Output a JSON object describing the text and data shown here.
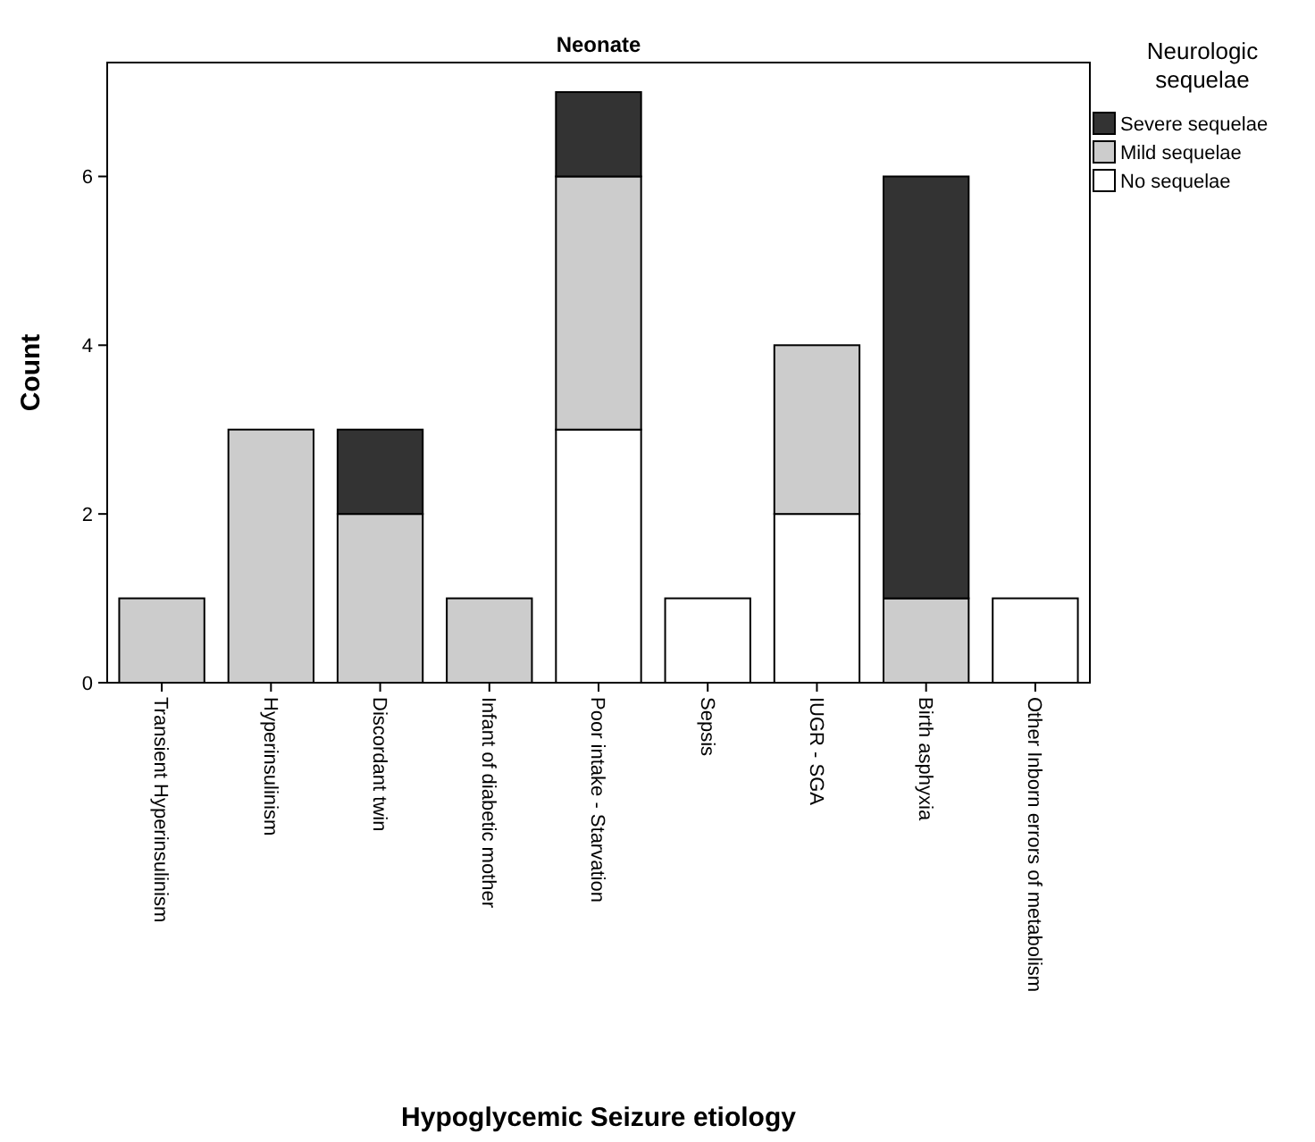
{
  "chart_data": {
    "type": "bar",
    "title": "Neonate",
    "xlabel": "Hypoglycemic Seizure etiology",
    "ylabel": "Count",
    "legend_title": "Neurologic sequelae",
    "categories": [
      "Transient Hyperinsulinism",
      "Hyperinsulinism",
      "Discordant twin",
      "Infant of diabetic mother",
      "Poor intake - Starvation",
      "Sepsis",
      "IUGR - SGA",
      "Birth asphyxia",
      "Other Inborn errors of metabolism"
    ],
    "series": [
      {
        "name": "No sequelae",
        "color": "#ffffff",
        "values": [
          0,
          0,
          0,
          0,
          3,
          1,
          2,
          0,
          1
        ]
      },
      {
        "name": "Mild sequelae",
        "color": "#cccccc",
        "values": [
          1,
          3,
          2,
          1,
          3,
          0,
          2,
          1,
          0
        ]
      },
      {
        "name": "Severe sequelae",
        "color": "#333333",
        "values": [
          0,
          0,
          1,
          0,
          1,
          0,
          0,
          5,
          0
        ]
      }
    ],
    "stacked": true,
    "ylim": [
      0,
      7.35
    ],
    "yticks": [
      0,
      2,
      4,
      6
    ],
    "grid": false,
    "legend": "top right"
  }
}
